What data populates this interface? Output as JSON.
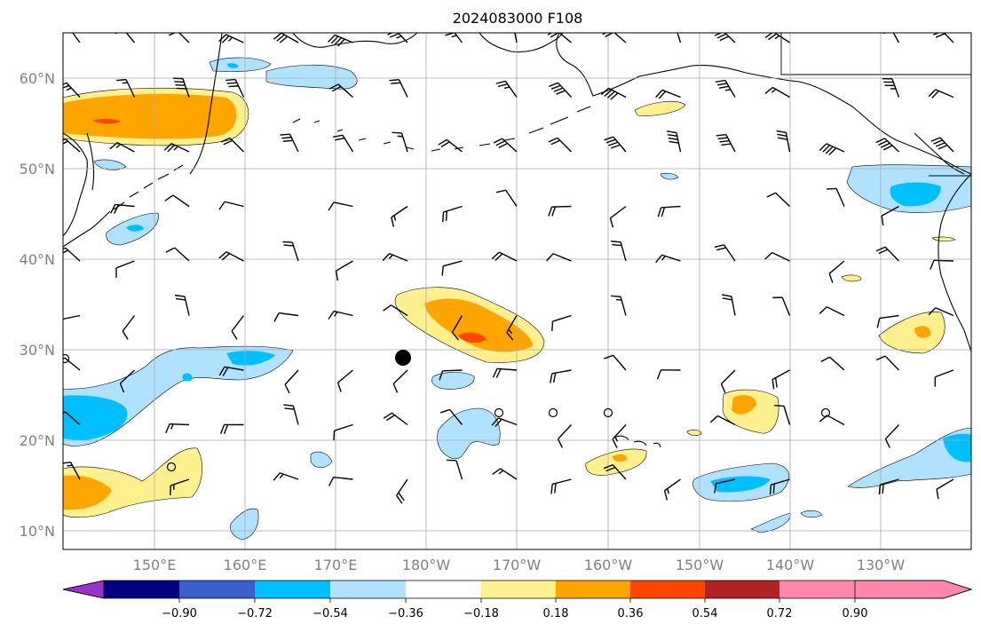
{
  "title": "2024083000 F108",
  "latitude_labels": [
    "10°N",
    "20°N",
    "30°N",
    "40°N",
    "50°N",
    "60°N"
  ],
  "longitude_labels": [
    "150°E",
    "160°E",
    "170°E",
    "180°W",
    "170°W",
    "160°W",
    "150°W",
    "140°W",
    "130°W"
  ],
  "colorbar": {
    "tick_labels": [
      "−0.90",
      "−0.72",
      "−0.54",
      "−0.36",
      "−0.18",
      "0.18",
      "0.36",
      "0.54",
      "0.72",
      "0.90"
    ],
    "colors": [
      "#9932cc",
      "#000080",
      "#3a5fcd",
      "#00bfff",
      "#b0e2ff",
      "#ffffff",
      "#fff08f",
      "#ffa500",
      "#ff4500",
      "#b22222",
      "#ff88aa"
    ]
  },
  "map": {
    "gridline_color": "#a9a9a9",
    "storm_marker_color": "#000000"
  }
}
